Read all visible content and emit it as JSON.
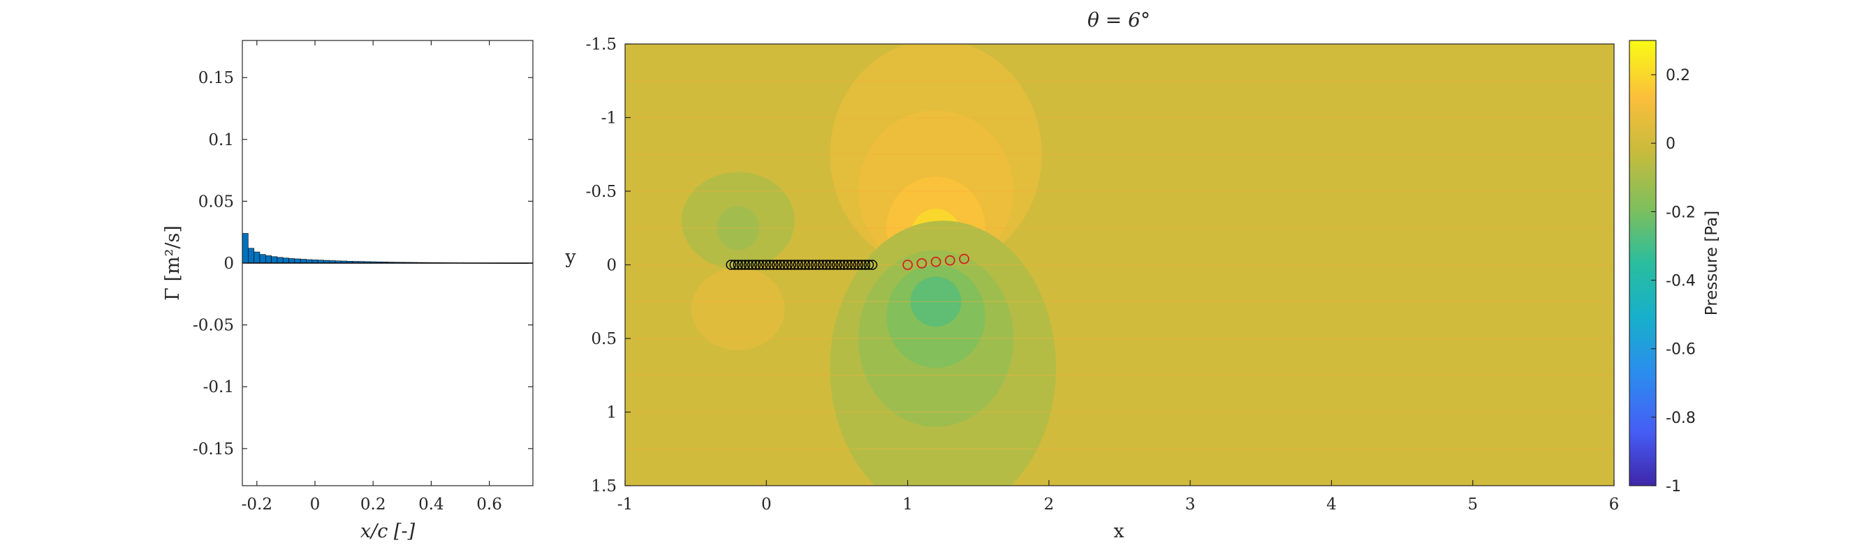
{
  "chart_data": [
    {
      "type": "bar",
      "xlabel": "x/c [-]",
      "ylabel": "Γ [m²/s]",
      "xlim": [
        -0.25,
        0.75
      ],
      "ylim": [
        -0.18,
        0.18
      ],
      "xticks": [
        -0.2,
        0,
        0.2,
        0.4,
        0.6
      ],
      "xtick_labels": [
        "-0.2",
        "0",
        "0.2",
        "0.4",
        "0.6"
      ],
      "yticks": [
        0.15,
        0.1,
        0.05,
        0,
        -0.05,
        -0.1,
        -0.15
      ],
      "ytick_labels": [
        "0.15",
        "0.1",
        "0.05",
        "0",
        "-0.05",
        "-0.1",
        "-0.15"
      ],
      "bar_width": 0.02,
      "x": [
        -0.24,
        -0.22,
        -0.2,
        -0.18,
        -0.16,
        -0.14,
        -0.12,
        -0.1,
        -0.08,
        -0.06,
        -0.04,
        -0.02,
        0.0,
        0.02,
        0.04,
        0.06,
        0.08,
        0.1,
        0.12,
        0.14,
        0.16,
        0.18,
        0.2,
        0.22,
        0.24,
        0.26,
        0.28,
        0.3,
        0.32,
        0.34,
        0.36,
        0.38,
        0.4,
        0.42,
        0.44,
        0.46,
        0.48,
        0.5,
        0.52,
        0.54,
        0.56,
        0.58,
        0.6,
        0.62,
        0.64,
        0.66,
        0.68,
        0.7,
        0.72,
        0.74
      ],
      "values": [
        0.024,
        0.012,
        0.009,
        0.007,
        0.006,
        0.0052,
        0.0046,
        0.0041,
        0.0037,
        0.0034,
        0.0031,
        0.0028,
        0.0026,
        0.0024,
        0.0022,
        0.002,
        0.0018,
        0.0017,
        0.0015,
        0.0014,
        0.0013,
        0.0012,
        0.0011,
        0.001,
        0.0009,
        0.0008,
        0.0007,
        0.00065,
        0.0006,
        0.00055,
        0.0005,
        0.00045,
        0.0004,
        0.00036,
        0.00032,
        0.00028,
        0.00024,
        0.0002,
        0.00017,
        0.00014,
        0.00012,
        0.0001,
        8e-05,
        6e-05,
        5e-05,
        4e-05,
        3e-05,
        2e-05,
        1e-05,
        1e-05
      ],
      "bar_color": "#0072BD",
      "grid": false
    },
    {
      "type": "heatmap",
      "title": "θ = 6°",
      "xlabel": "x",
      "ylabel": "y",
      "xlim": [
        -1,
        6
      ],
      "ylim": [
        -1.5,
        1.5
      ],
      "y_reversed": true,
      "xticks": [
        -1,
        0,
        1,
        2,
        3,
        4,
        5,
        6
      ],
      "xtick_labels": [
        "-1",
        "0",
        "1",
        "2",
        "3",
        "4",
        "5",
        "6"
      ],
      "yticks": [
        -1.5,
        -1,
        -0.5,
        0,
        0.5,
        1,
        1.5
      ],
      "ytick_labels": [
        "-1.5",
        "-1",
        "-0.5",
        "0",
        "0.5",
        "1",
        "1.5"
      ],
      "colorbar": {
        "label": "Pressure [Pa]",
        "range": [
          -1,
          0.3
        ],
        "ticks": [
          0.2,
          0,
          -0.2,
          -0.4,
          -0.6,
          -0.8,
          -1
        ],
        "tick_labels": [
          "0.2",
          "0",
          "-0.2",
          "-0.4",
          "-0.6",
          "-0.8",
          "-1"
        ],
        "colormap": "parula"
      },
      "background_value": 0.0,
      "regions": [
        {
          "cx": 1.2,
          "cy": -0.75,
          "rx": 0.75,
          "ry": 0.78,
          "value": 0.06
        },
        {
          "cx": 1.2,
          "cy": -0.5,
          "rx": 0.55,
          "ry": 0.55,
          "value": 0.09
        },
        {
          "cx": 1.2,
          "cy": -0.25,
          "rx": 0.35,
          "ry": 0.35,
          "value": 0.14
        },
        {
          "cx": 1.2,
          "cy": -0.2,
          "rx": 0.18,
          "ry": 0.18,
          "value": 0.2
        },
        {
          "cx": 1.25,
          "cy": 0.7,
          "rx": 0.8,
          "ry": 1.0,
          "value": -0.07
        },
        {
          "cx": 1.2,
          "cy": 0.5,
          "rx": 0.55,
          "ry": 0.6,
          "value": -0.12
        },
        {
          "cx": 1.2,
          "cy": 0.35,
          "rx": 0.35,
          "ry": 0.35,
          "value": -0.18
        },
        {
          "cx": 1.2,
          "cy": 0.25,
          "rx": 0.18,
          "ry": 0.17,
          "value": -0.25
        },
        {
          "cx": -0.2,
          "cy": -0.3,
          "rx": 0.4,
          "ry": 0.33,
          "value": -0.07
        },
        {
          "cx": -0.2,
          "cy": -0.25,
          "rx": 0.15,
          "ry": 0.15,
          "value": -0.11
        },
        {
          "cx": -0.2,
          "cy": 0.3,
          "rx": 0.33,
          "ry": 0.28,
          "value": 0.05
        }
      ],
      "plate_points": {
        "x": [
          -0.25,
          -0.225,
          -0.2,
          -0.175,
          -0.15,
          -0.125,
          -0.1,
          -0.075,
          -0.05,
          -0.025,
          0.0,
          0.025,
          0.05,
          0.075,
          0.1,
          0.125,
          0.15,
          0.175,
          0.2,
          0.225,
          0.25,
          0.275,
          0.3,
          0.325,
          0.35,
          0.375,
          0.4,
          0.425,
          0.45,
          0.475,
          0.5,
          0.525,
          0.55,
          0.575,
          0.6,
          0.625,
          0.65,
          0.675,
          0.7,
          0.725,
          0.75
        ],
        "y": 0,
        "marker": "o",
        "color": "#000000"
      },
      "wake_points": {
        "x": [
          1.0,
          1.1,
          1.2,
          1.3,
          1.4
        ],
        "y": [
          0.0,
          -0.01,
          -0.02,
          -0.03,
          -0.04
        ],
        "marker": "o",
        "color": "#D62020"
      }
    }
  ]
}
